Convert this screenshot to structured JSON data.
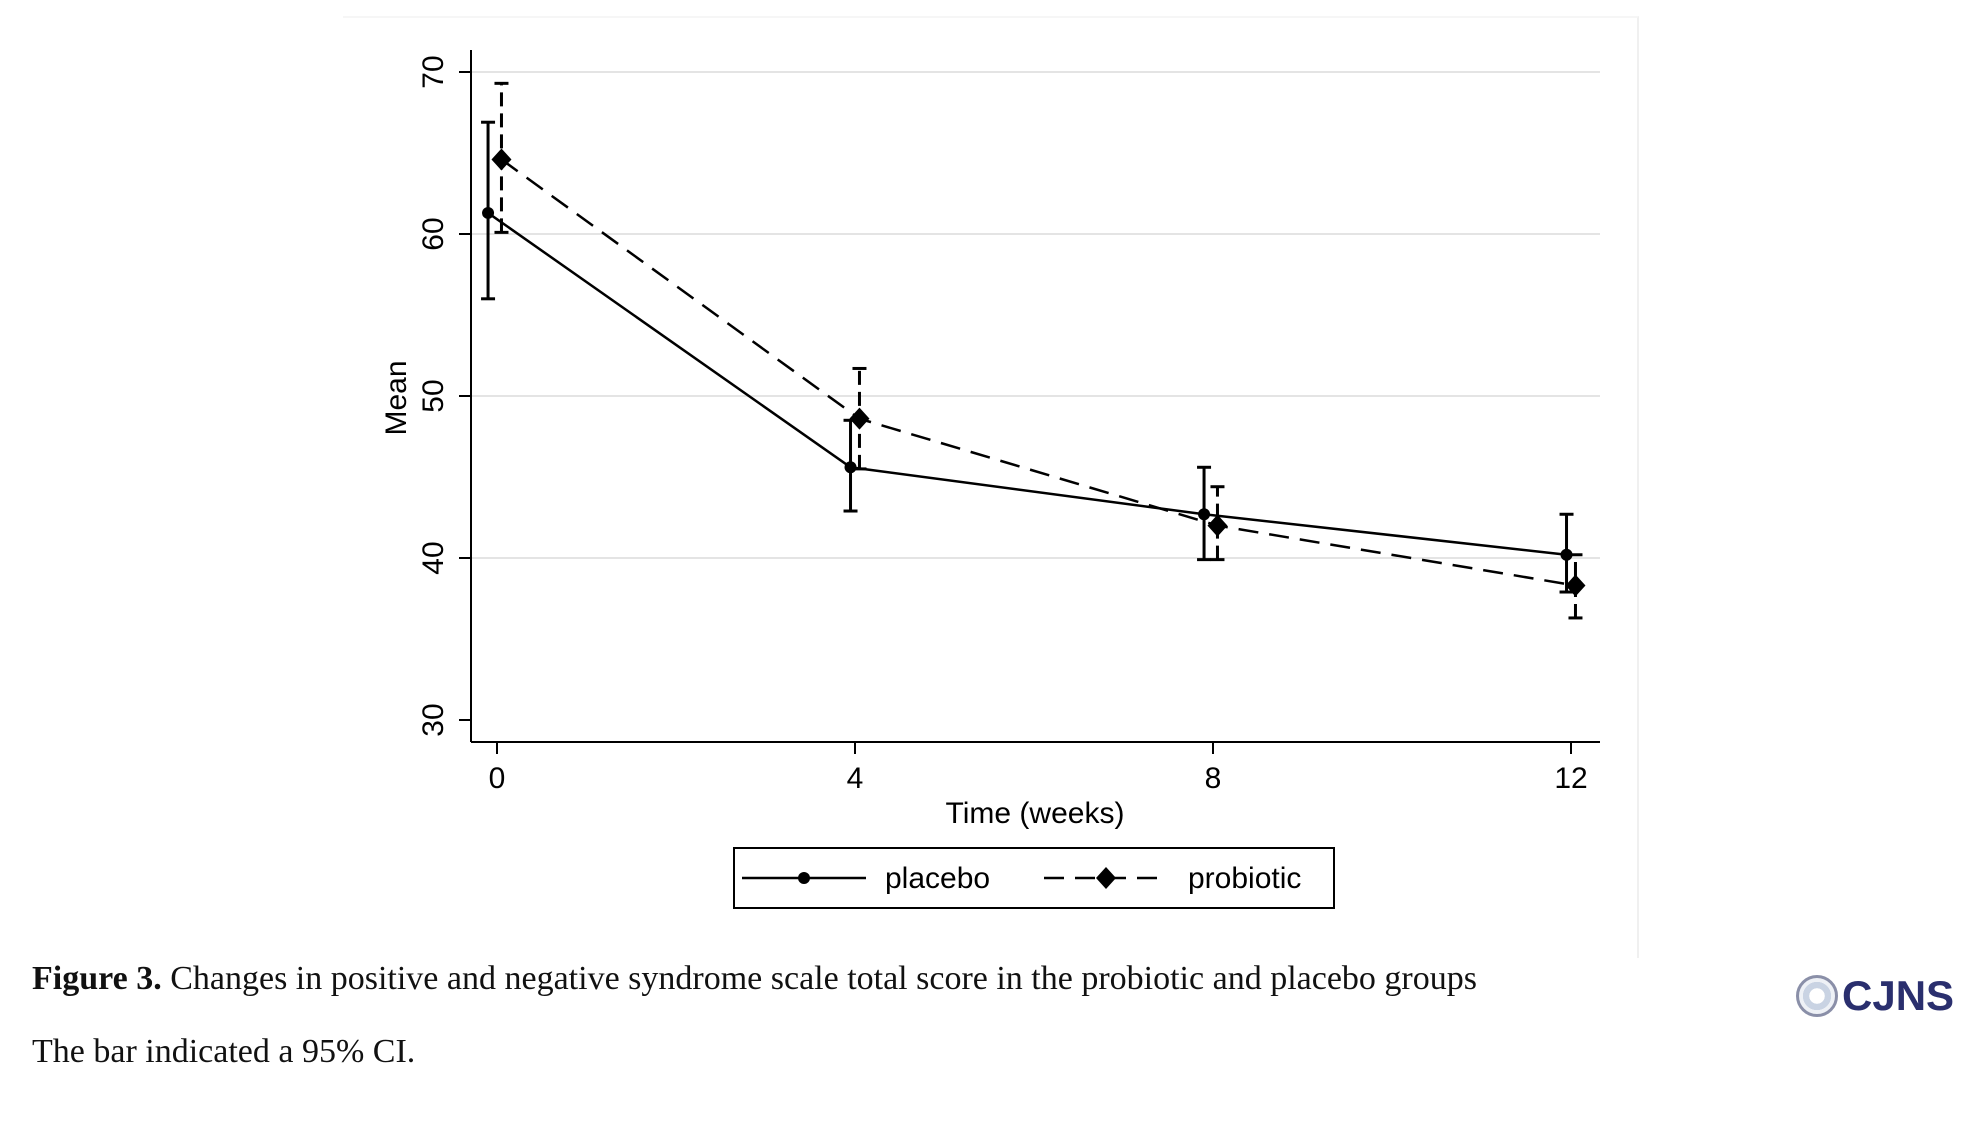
{
  "chart_data": {
    "type": "line",
    "xlabel": "Time (weeks)",
    "ylabel": "Mean",
    "x": [
      0,
      4,
      8,
      12
    ],
    "xticks": [
      "0",
      "4",
      "8",
      "12"
    ],
    "yticks": [
      "30",
      "40",
      "50",
      "60",
      "70"
    ],
    "xlim": [
      -0.3,
      12.3
    ],
    "ylim": [
      29,
      71
    ],
    "grid": "horizontal",
    "legend_position": "bottom",
    "series": [
      {
        "name": "placebo",
        "style": "solid",
        "marker": "circle",
        "color": "#000000",
        "x": [
          -0.1,
          3.95,
          7.9,
          11.95
        ],
        "values": [
          61.3,
          45.6,
          42.7,
          40.2
        ],
        "ci_low": [
          56.0,
          42.9,
          39.9,
          37.9
        ],
        "ci_high": [
          66.9,
          48.5,
          45.6,
          42.7
        ]
      },
      {
        "name": "probiotic",
        "style": "dashed",
        "marker": "diamond",
        "color": "#000000",
        "x": [
          0.05,
          4.05,
          8.05,
          12.05
        ],
        "values": [
          64.6,
          48.6,
          42.0,
          38.3
        ],
        "ci_low": [
          60.1,
          45.5,
          39.9,
          36.3
        ],
        "ci_high": [
          69.3,
          51.7,
          44.4,
          40.2
        ]
      }
    ]
  },
  "caption": {
    "label": "Figure 3.",
    "text": " Changes in positive and negative syndrome scale total score in the probiotic and placebo groups",
    "note": "The bar indicated a 95% CI."
  },
  "logo": {
    "text": "CJNS",
    "color": "#2a2f6e"
  }
}
